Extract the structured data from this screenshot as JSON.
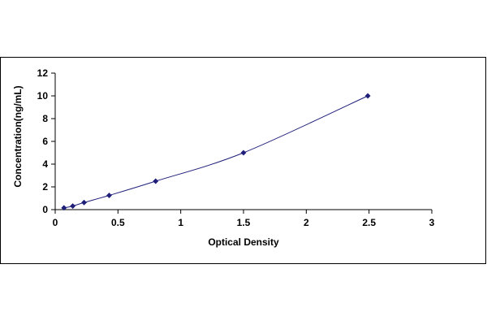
{
  "chart_data": {
    "type": "scatter",
    "title": "",
    "xlabel": "Optical Density",
    "ylabel": "Concentration(ng/mL)",
    "xlim": [
      0,
      3
    ],
    "ylim": [
      0,
      12
    ],
    "x_ticks": [
      "0",
      "0.5",
      "1",
      "1.5",
      "2",
      "2.5",
      "3"
    ],
    "y_ticks": [
      "0",
      "2",
      "4",
      "6",
      "8",
      "10",
      "12"
    ],
    "grid": false,
    "legend": "none",
    "marker_color": "#1f1f7a",
    "line_color": "#1f1f7a",
    "series": [
      {
        "x": [
          0.07,
          0.14,
          0.23,
          0.43,
          0.8,
          1.5,
          2.49
        ],
        "y": [
          0.156,
          0.313,
          0.625,
          1.25,
          2.5,
          5,
          10
        ]
      }
    ],
    "fit_curve": "smooth"
  }
}
